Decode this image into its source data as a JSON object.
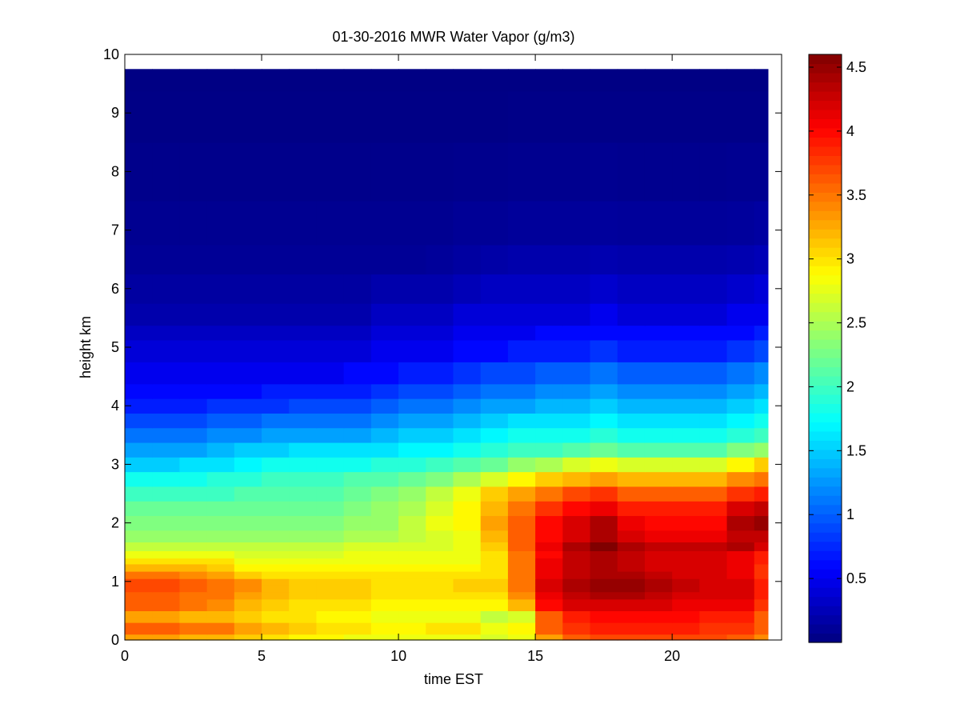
{
  "chart_data": {
    "type": "heatmap",
    "title": "01-30-2016 MWR Water Vapor (g/m3)",
    "xlabel": "time EST",
    "ylabel": "height km",
    "xlim": [
      0,
      24
    ],
    "ylim": [
      0,
      10
    ],
    "x_ticks": [
      0,
      5,
      10,
      15,
      20
    ],
    "x_tick_labels": [
      "0",
      "5",
      "10",
      "15",
      "20"
    ],
    "y_ticks": [
      0,
      1,
      2,
      3,
      4,
      5,
      6,
      7,
      8,
      9,
      10
    ],
    "y_tick_labels": [
      "0",
      "1",
      "2",
      "3",
      "4",
      "5",
      "6",
      "7",
      "8",
      "9",
      "10"
    ],
    "colormap": "jet",
    "colorbar": {
      "range": [
        0,
        4.6
      ],
      "ticks": [
        0.5,
        1,
        1.5,
        2,
        2.5,
        3,
        3.5,
        4,
        4.5
      ],
      "tick_labels": [
        "0.5",
        "1",
        "1.5",
        "2",
        "2.5",
        "3",
        "3.5",
        "4",
        "4.5"
      ],
      "position": "right"
    },
    "time_hours": [
      0,
      1,
      2,
      3,
      4,
      5,
      6,
      7,
      8,
      9,
      10,
      11,
      12,
      13,
      14,
      15,
      16,
      17,
      18,
      19,
      20,
      21,
      22,
      23
    ],
    "height_km": [
      0.05,
      0.15,
      0.25,
      0.35,
      0.45,
      0.55,
      0.65,
      0.75,
      0.9,
      1.0,
      1.1,
      1.25,
      1.35,
      1.45,
      1.6,
      1.75,
      2.0,
      2.25,
      2.5,
      2.75,
      3.0,
      3.25,
      3.5,
      3.75,
      4.0,
      4.25,
      4.5,
      5.0,
      5.25,
      5.5,
      6.0,
      6.5,
      7.0,
      8.0,
      9.0,
      9.75
    ],
    "water_vapor": [
      [
        3.3,
        3.3,
        3.2,
        3.2,
        3.1,
        3.0,
        2.9,
        2.9,
        2.8,
        2.8,
        2.8,
        2.8,
        2.8,
        2.7,
        2.8,
        3.3,
        3.6,
        3.7,
        3.7,
        3.7,
        3.7,
        3.7,
        3.6,
        3.4
      ],
      [
        3.6,
        3.6,
        3.5,
        3.5,
        3.3,
        3.2,
        3.1,
        3.0,
        3.0,
        2.9,
        2.9,
        3.0,
        3.0,
        2.8,
        2.9,
        3.6,
        3.8,
        3.9,
        3.9,
        3.9,
        3.9,
        3.8,
        3.8,
        3.6
      ],
      [
        3.6,
        3.6,
        3.5,
        3.5,
        3.3,
        3.2,
        3.1,
        3.0,
        3.0,
        2.9,
        2.9,
        3.0,
        3.0,
        2.8,
        2.9,
        3.6,
        3.8,
        3.9,
        3.9,
        3.9,
        3.9,
        3.8,
        3.8,
        3.6
      ],
      [
        3.3,
        3.3,
        3.2,
        3.2,
        3.1,
        3.0,
        3.0,
        2.9,
        2.9,
        2.8,
        2.8,
        2.8,
        2.8,
        2.6,
        2.7,
        3.6,
        3.9,
        4.0,
        4.0,
        4.0,
        4.0,
        3.9,
        3.9,
        3.6
      ],
      [
        3.3,
        3.3,
        3.2,
        3.2,
        3.1,
        3.0,
        3.0,
        2.9,
        2.9,
        2.8,
        2.8,
        2.8,
        2.8,
        2.6,
        2.7,
        3.6,
        3.9,
        4.0,
        4.0,
        4.0,
        4.0,
        3.9,
        3.9,
        3.6
      ],
      [
        3.6,
        3.6,
        3.5,
        3.4,
        3.2,
        3.1,
        3.0,
        3.0,
        3.0,
        2.9,
        2.9,
        2.9,
        2.9,
        2.9,
        3.2,
        4.0,
        4.2,
        4.2,
        4.2,
        4.2,
        4.1,
        4.1,
        4.1,
        3.8
      ],
      [
        3.6,
        3.6,
        3.5,
        3.4,
        3.2,
        3.1,
        3.0,
        3.0,
        3.0,
        2.9,
        2.9,
        2.9,
        2.9,
        2.9,
        3.2,
        4.0,
        4.2,
        4.2,
        4.2,
        4.2,
        4.1,
        4.1,
        4.1,
        3.8
      ],
      [
        3.6,
        3.6,
        3.5,
        3.5,
        3.3,
        3.2,
        3.1,
        3.1,
        3.1,
        3.0,
        3.0,
        3.0,
        3.0,
        3.0,
        3.4,
        4.1,
        4.3,
        4.4,
        4.4,
        4.3,
        4.2,
        4.2,
        4.2,
        3.9
      ],
      [
        3.7,
        3.7,
        3.6,
        3.5,
        3.4,
        3.2,
        3.1,
        3.1,
        3.1,
        3.0,
        3.0,
        3.0,
        3.1,
        3.1,
        3.5,
        4.2,
        4.4,
        4.5,
        4.5,
        4.4,
        4.3,
        4.2,
        4.2,
        3.9
      ],
      [
        3.7,
        3.7,
        3.6,
        3.5,
        3.4,
        3.2,
        3.1,
        3.1,
        3.1,
        3.0,
        3.0,
        3.0,
        3.1,
        3.1,
        3.5,
        4.2,
        4.4,
        4.5,
        4.5,
        4.4,
        4.3,
        4.2,
        4.2,
        3.9
      ],
      [
        3.5,
        3.5,
        3.4,
        3.3,
        3.1,
        3.0,
        3.0,
        3.0,
        3.0,
        3.0,
        3.0,
        3.0,
        3.0,
        3.0,
        3.5,
        4.1,
        4.3,
        4.4,
        4.4,
        4.3,
        4.2,
        4.2,
        4.1,
        3.8
      ],
      [
        3.2,
        3.2,
        3.2,
        3.1,
        2.9,
        2.9,
        2.9,
        2.9,
        2.9,
        2.9,
        2.9,
        2.9,
        2.9,
        3.0,
        3.5,
        4.1,
        4.3,
        4.4,
        4.3,
        4.2,
        4.2,
        4.2,
        4.1,
        3.8
      ],
      [
        3.0,
        3.0,
        3.0,
        3.0,
        2.8,
        2.8,
        2.8,
        2.8,
        2.8,
        2.8,
        2.8,
        2.8,
        2.8,
        3.0,
        3.5,
        4.1,
        4.3,
        4.4,
        4.3,
        4.2,
        4.2,
        4.2,
        4.1,
        3.9
      ],
      [
        2.8,
        2.8,
        2.8,
        2.8,
        2.7,
        2.7,
        2.7,
        2.7,
        2.8,
        2.8,
        2.8,
        2.8,
        2.8,
        3.0,
        3.5,
        4.0,
        4.3,
        4.4,
        4.3,
        4.2,
        4.2,
        4.2,
        4.1,
        3.9
      ],
      [
        2.6,
        2.6,
        2.6,
        2.6,
        2.6,
        2.6,
        2.6,
        2.6,
        2.7,
        2.7,
        2.7,
        2.7,
        2.8,
        3.1,
        3.6,
        4.1,
        4.4,
        4.6,
        4.4,
        4.3,
        4.3,
        4.3,
        4.4,
        4.2
      ],
      [
        2.4,
        2.4,
        2.4,
        2.4,
        2.4,
        2.4,
        2.4,
        2.4,
        2.5,
        2.5,
        2.6,
        2.7,
        2.8,
        3.2,
        3.6,
        4.0,
        4.2,
        4.4,
        4.2,
        4.1,
        4.1,
        4.1,
        4.3,
        4.3
      ],
      [
        2.3,
        2.3,
        2.3,
        2.3,
        2.3,
        2.3,
        2.3,
        2.3,
        2.4,
        2.4,
        2.6,
        2.8,
        2.9,
        3.3,
        3.6,
        4.0,
        4.2,
        4.4,
        4.1,
        4.0,
        4.0,
        4.0,
        4.4,
        4.5
      ],
      [
        2.2,
        2.2,
        2.2,
        2.2,
        2.2,
        2.2,
        2.2,
        2.2,
        2.3,
        2.4,
        2.5,
        2.7,
        2.9,
        3.2,
        3.5,
        3.8,
        4.0,
        4.1,
        3.9,
        3.9,
        3.9,
        3.9,
        4.2,
        4.3
      ],
      [
        2.0,
        2.0,
        2.0,
        2.0,
        2.1,
        2.1,
        2.1,
        2.1,
        2.2,
        2.3,
        2.4,
        2.6,
        2.8,
        3.1,
        3.3,
        3.5,
        3.7,
        3.8,
        3.6,
        3.6,
        3.6,
        3.6,
        3.8,
        3.9
      ],
      [
        1.8,
        1.8,
        1.8,
        1.9,
        1.9,
        2.0,
        2.0,
        2.0,
        2.1,
        2.1,
        2.2,
        2.3,
        2.5,
        2.7,
        2.9,
        3.1,
        3.2,
        3.3,
        3.2,
        3.2,
        3.2,
        3.2,
        3.4,
        3.5
      ],
      [
        1.5,
        1.5,
        1.6,
        1.6,
        1.7,
        1.8,
        1.8,
        1.8,
        1.8,
        1.9,
        1.9,
        2.0,
        2.1,
        2.2,
        2.4,
        2.5,
        2.7,
        2.8,
        2.7,
        2.7,
        2.7,
        2.7,
        2.9,
        3.1
      ],
      [
        1.3,
        1.3,
        1.3,
        1.4,
        1.5,
        1.5,
        1.6,
        1.6,
        1.6,
        1.6,
        1.7,
        1.7,
        1.8,
        1.9,
        2.0,
        2.0,
        2.1,
        2.2,
        2.1,
        2.1,
        2.1,
        2.1,
        2.3,
        2.4
      ],
      [
        1.1,
        1.1,
        1.1,
        1.2,
        1.2,
        1.3,
        1.3,
        1.3,
        1.3,
        1.4,
        1.5,
        1.5,
        1.6,
        1.7,
        1.8,
        1.8,
        1.8,
        1.9,
        1.8,
        1.8,
        1.8,
        1.8,
        1.9,
        2.0
      ],
      [
        0.9,
        0.9,
        0.9,
        1.0,
        1.0,
        1.1,
        1.1,
        1.1,
        1.1,
        1.2,
        1.3,
        1.3,
        1.4,
        1.5,
        1.6,
        1.6,
        1.6,
        1.7,
        1.6,
        1.6,
        1.6,
        1.6,
        1.7,
        1.8
      ],
      [
        0.7,
        0.7,
        0.7,
        0.8,
        0.8,
        0.8,
        0.9,
        0.9,
        0.9,
        1.0,
        1.1,
        1.1,
        1.2,
        1.3,
        1.3,
        1.4,
        1.4,
        1.5,
        1.4,
        1.4,
        1.4,
        1.4,
        1.5,
        1.6
      ],
      [
        0.6,
        0.6,
        0.6,
        0.6,
        0.6,
        0.7,
        0.7,
        0.7,
        0.7,
        0.8,
        0.9,
        0.9,
        1.0,
        1.1,
        1.1,
        1.2,
        1.2,
        1.3,
        1.2,
        1.2,
        1.2,
        1.2,
        1.3,
        1.4
      ],
      [
        0.5,
        0.5,
        0.5,
        0.5,
        0.5,
        0.5,
        0.5,
        0.5,
        0.6,
        0.6,
        0.7,
        0.7,
        0.8,
        0.9,
        0.9,
        1.0,
        1.0,
        1.1,
        1.0,
        1.0,
        1.0,
        1.0,
        1.1,
        1.2
      ],
      [
        0.4,
        0.4,
        0.4,
        0.4,
        0.4,
        0.4,
        0.4,
        0.4,
        0.4,
        0.5,
        0.5,
        0.5,
        0.6,
        0.6,
        0.7,
        0.7,
        0.7,
        0.8,
        0.7,
        0.7,
        0.7,
        0.7,
        0.8,
        0.9
      ],
      [
        0.3,
        0.3,
        0.3,
        0.3,
        0.3,
        0.3,
        0.3,
        0.3,
        0.3,
        0.4,
        0.4,
        0.4,
        0.5,
        0.5,
        0.5,
        0.6,
        0.6,
        0.6,
        0.6,
        0.6,
        0.6,
        0.6,
        0.6,
        0.7
      ],
      [
        0.2,
        0.2,
        0.2,
        0.2,
        0.2,
        0.2,
        0.2,
        0.2,
        0.2,
        0.3,
        0.3,
        0.3,
        0.4,
        0.4,
        0.4,
        0.4,
        0.4,
        0.5,
        0.4,
        0.4,
        0.4,
        0.4,
        0.5,
        0.5
      ],
      [
        0.15,
        0.15,
        0.15,
        0.15,
        0.15,
        0.15,
        0.15,
        0.15,
        0.15,
        0.2,
        0.2,
        0.2,
        0.25,
        0.3,
        0.3,
        0.3,
        0.3,
        0.35,
        0.3,
        0.3,
        0.3,
        0.3,
        0.35,
        0.4
      ],
      [
        0.1,
        0.1,
        0.1,
        0.1,
        0.1,
        0.1,
        0.1,
        0.1,
        0.1,
        0.1,
        0.1,
        0.12,
        0.15,
        0.18,
        0.2,
        0.2,
        0.2,
        0.22,
        0.2,
        0.2,
        0.2,
        0.2,
        0.22,
        0.25
      ],
      [
        0.08,
        0.08,
        0.08,
        0.08,
        0.08,
        0.08,
        0.08,
        0.08,
        0.08,
        0.08,
        0.08,
        0.08,
        0.1,
        0.1,
        0.12,
        0.12,
        0.12,
        0.13,
        0.12,
        0.12,
        0.12,
        0.12,
        0.13,
        0.15
      ],
      [
        0.05,
        0.05,
        0.05,
        0.05,
        0.05,
        0.05,
        0.05,
        0.05,
        0.05,
        0.05,
        0.05,
        0.05,
        0.06,
        0.06,
        0.07,
        0.07,
        0.07,
        0.08,
        0.07,
        0.07,
        0.07,
        0.07,
        0.08,
        0.08
      ],
      [
        0.03,
        0.03,
        0.03,
        0.03,
        0.03,
        0.03,
        0.03,
        0.03,
        0.03,
        0.03,
        0.03,
        0.03,
        0.03,
        0.03,
        0.04,
        0.04,
        0.04,
        0.04,
        0.04,
        0.04,
        0.04,
        0.04,
        0.04,
        0.04
      ],
      [
        0.02,
        0.02,
        0.02,
        0.02,
        0.02,
        0.02,
        0.02,
        0.02,
        0.02,
        0.02,
        0.02,
        0.02,
        0.02,
        0.02,
        0.02,
        0.02,
        0.02,
        0.02,
        0.02,
        0.02,
        0.02,
        0.02,
        0.02,
        0.02
      ]
    ]
  }
}
